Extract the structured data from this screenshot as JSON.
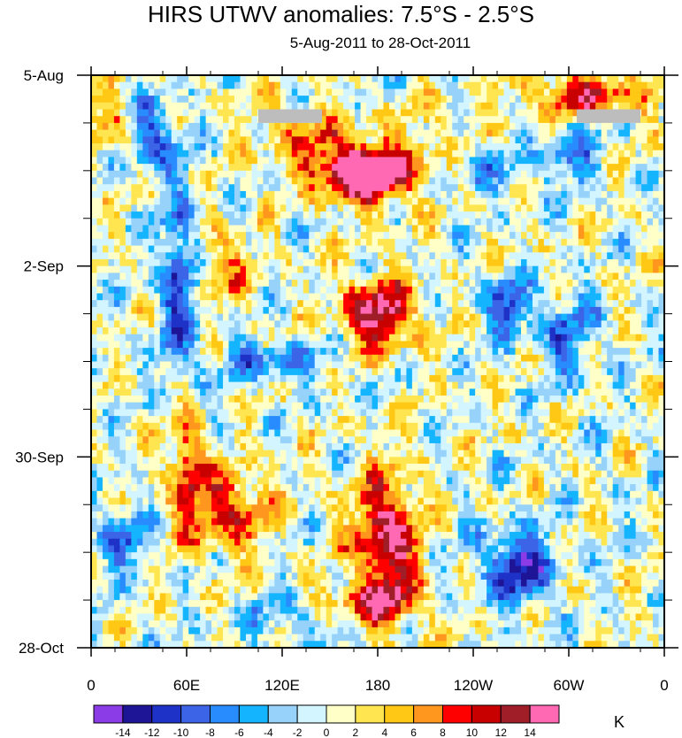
{
  "chart_data": {
    "type": "heatmap",
    "title": "HIRS UTWV anomalies: 7.5°S - 2.5°S",
    "subtitle": "5-Aug-2011 to 28-Oct-2011",
    "x_ticks": [
      "0",
      "60E",
      "120E",
      "180",
      "120W",
      "60W",
      "0"
    ],
    "y_ticks": [
      "5-Aug",
      "2-Sep",
      "30-Sep",
      "28-Oct"
    ],
    "x_range_deg_east": [
      0,
      360
    ],
    "y_range_days": [
      0,
      84
    ],
    "colorbar": {
      "unit": "K",
      "levels": [
        "-14",
        "-12",
        "-10",
        "-8",
        "-6",
        "-4",
        "-2",
        "0",
        "2",
        "4",
        "6",
        "8",
        "10",
        "12",
        "14"
      ],
      "colors": [
        "#8c3ce6",
        "#1e1496",
        "#1e32c8",
        "#3c64e6",
        "#288cff",
        "#14b4ff",
        "#96d2fa",
        "#d2f5ff",
        "#ffffc8",
        "#ffe650",
        "#ffc814",
        "#ff961e",
        "#ff0000",
        "#c80000",
        "#a01e28",
        "#ff69b4"
      ]
    },
    "features": [
      {
        "label": "positive anomaly band",
        "lon": 175,
        "day_start": 12,
        "day_end": 20,
        "max_value": 14
      },
      {
        "label": "positive anomaly band",
        "lon": 180,
        "day_start": 30,
        "day_end": 40,
        "max_value": 14
      },
      {
        "label": "positive anomaly band",
        "lon": 182,
        "day_start": 58,
        "day_end": 80,
        "max_value": 14
      },
      {
        "label": "negative anomaly",
        "lon": 55,
        "day_start": 18,
        "day_end": 45,
        "min_value": -10
      },
      {
        "label": "negative anomaly",
        "lon": 268,
        "day_start": 66,
        "day_end": 78,
        "min_value": -12
      },
      {
        "label": "negative anomaly",
        "lon": 263,
        "day_start": 30,
        "day_end": 38,
        "min_value": -12
      },
      {
        "label": "missing data",
        "lon": 125,
        "day_start": 5,
        "day_end": 7
      },
      {
        "label": "missing data",
        "lon": 325,
        "day_start": 5,
        "day_end": 7
      }
    ]
  }
}
